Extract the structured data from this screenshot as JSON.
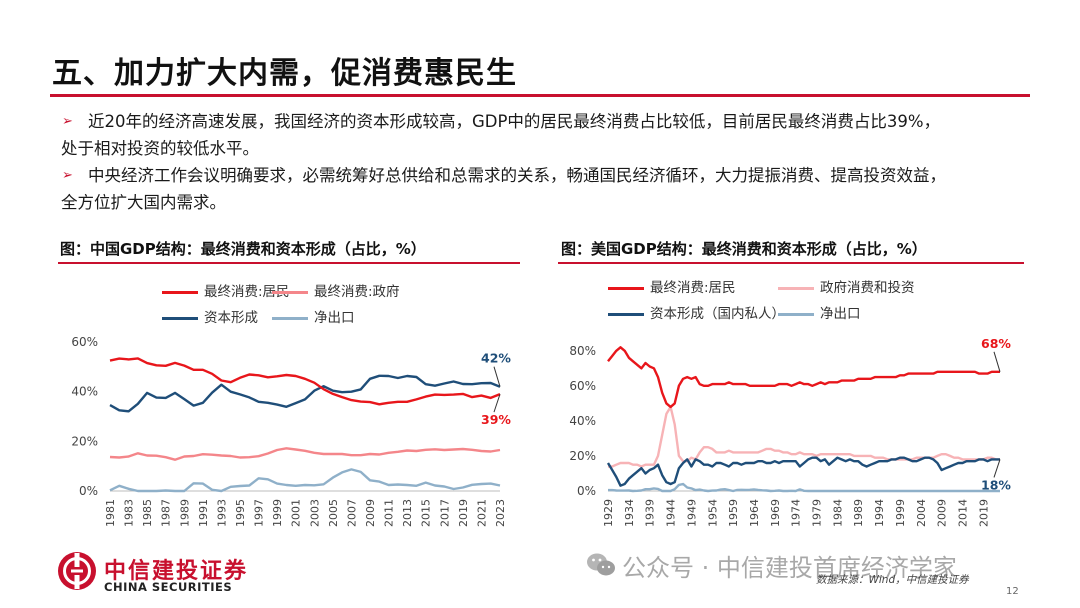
{
  "page": {
    "title": "五、加力扩大内需，促消费惠民生",
    "bullets": [
      {
        "line1": "近20年的经济高速发展，我国经济的资本形成较高，GDP中的居民最终消费占比较低，目前居民最终消费占比39%，",
        "line2": "处于相对投资的较低水平。"
      },
      {
        "line1": "中央经济工作会议明确要求，必需统筹好总供给和总需求的关系，畅通国民经济循环，大力提振消费、提高投资效益，",
        "line2": "全方位扩大国内需求。"
      }
    ],
    "bullet_mark": "➢",
    "logo_cn": "中信建投证券",
    "logo_en": "CHINA SECURITIES",
    "watermark": "公众号 · 中信建投首席经济学家",
    "source": "数据来源：Wind，中信建投证券",
    "page_number": "12",
    "colors": {
      "brand_red": "#c8102e",
      "resident": "#e8161b",
      "government": "#f4868a",
      "government_us": "#f7b3b6",
      "capital": "#1f4e79",
      "net_export": "#8fb0c9"
    }
  },
  "chart_data": [
    {
      "type": "line",
      "title": "图：中国GDP结构：最终消费和资本形成（占比，%）",
      "x": [
        1981,
        1982,
        1983,
        1984,
        1985,
        1986,
        1987,
        1988,
        1989,
        1990,
        1991,
        1992,
        1993,
        1994,
        1995,
        1996,
        1997,
        1998,
        1999,
        2000,
        2001,
        2002,
        2003,
        2004,
        2005,
        2006,
        2007,
        2008,
        2009,
        2010,
        2011,
        2012,
        2013,
        2014,
        2015,
        2016,
        2017,
        2018,
        2019,
        2020,
        2021,
        2022,
        2023
      ],
      "x_tick_labels": [
        "1981",
        "1983",
        "1985",
        "1987",
        "1989",
        "1991",
        "1993",
        "1995",
        "1997",
        "1999",
        "2001",
        "2003",
        "2005",
        "2007",
        "2009",
        "2011",
        "2013",
        "2015",
        "2017",
        "2019",
        "2021",
        "2023"
      ],
      "y_tick_labels": [
        "0%",
        "20%",
        "40%",
        "60%"
      ],
      "ylim": [
        0,
        60
      ],
      "series": [
        {
          "name": "最终消费:居民",
          "color": "#e8161b",
          "values": [
            52.5,
            53.3,
            53,
            53.4,
            51.5,
            50.6,
            50.4,
            51.6,
            50.5,
            48.8,
            48.8,
            47.2,
            44.5,
            43.8,
            45.6,
            46.9,
            46.6,
            45.8,
            46.2,
            46.7,
            46.3,
            45.2,
            43.6,
            41,
            39.1,
            37.8,
            36.6,
            36,
            35.8,
            34.9,
            35.5,
            35.9,
            35.9,
            36.9,
            38,
            38.8,
            38.7,
            38.8,
            39.1,
            37.8,
            38.4,
            37.5,
            39
          ]
        },
        {
          "name": "最终消费:政府",
          "color": "#f4868a",
          "values": [
            13.7,
            13.5,
            13.9,
            15.2,
            14.3,
            14.2,
            13.6,
            12.6,
            13.9,
            14.1,
            14.8,
            14.6,
            14.3,
            14.1,
            13.5,
            13.6,
            14,
            15.1,
            16.5,
            17.2,
            16.7,
            16.2,
            15.4,
            14.9,
            14.9,
            14.9,
            14.4,
            14.4,
            14.9,
            14.7,
            15.4,
            15.8,
            16.3,
            16.1,
            16.6,
            16.8,
            16.5,
            16.7,
            16.9,
            16.6,
            16.1,
            15.9,
            16.5
          ]
        },
        {
          "name": "资本形成",
          "color": "#1f4e79",
          "values": [
            34.6,
            32.5,
            32.1,
            35.1,
            39.5,
            37.6,
            37.5,
            39.5,
            37,
            34.4,
            35.5,
            39.6,
            42.8,
            40,
            38.9,
            37.7,
            35.9,
            35.5,
            34.8,
            33.9,
            35.4,
            36.9,
            40.4,
            42.2,
            40.4,
            39.8,
            40,
            40.9,
            45.2,
            46.4,
            46.3,
            45.5,
            46.3,
            45.9,
            43,
            42.4,
            43.3,
            44.1,
            43.1,
            43,
            43.4,
            43.5,
            42
          ]
        },
        {
          "name": "净出口",
          "color": "#8fb0c9",
          "values": [
            0.3,
            2.1,
            0.9,
            -0.6,
            -4.1,
            -1.4,
            0.2,
            -1.3,
            -1.2,
            3.1,
            3,
            0.5,
            -1.7,
            1.7,
            2,
            2.2,
            5.1,
            4.7,
            3,
            2.4,
            2.1,
            2.4,
            2.3,
            2.7,
            5.4,
            7.5,
            8.7,
            7.7,
            4.3,
            3.8,
            2.4,
            2.6,
            2.4,
            2.1,
            3.4,
            2.2,
            1.8,
            0.8,
            1.4,
            2.5,
            2.8,
            3,
            2.2
          ]
        }
      ],
      "end_labels": [
        {
          "series": 2,
          "text": "42%"
        },
        {
          "series": 0,
          "text": "39%"
        }
      ]
    },
    {
      "type": "line",
      "title": "图：美国GDP结构：最终消费和资本形成（占比，%）",
      "x": [
        1929,
        1930,
        1931,
        1932,
        1933,
        1934,
        1935,
        1936,
        1937,
        1938,
        1939,
        1940,
        1941,
        1942,
        1943,
        1944,
        1945,
        1946,
        1947,
        1948,
        1949,
        1950,
        1951,
        1952,
        1953,
        1954,
        1955,
        1956,
        1957,
        1958,
        1959,
        1960,
        1961,
        1962,
        1963,
        1964,
        1965,
        1966,
        1967,
        1968,
        1969,
        1970,
        1971,
        1972,
        1973,
        1974,
        1975,
        1976,
        1977,
        1978,
        1979,
        1980,
        1981,
        1982,
        1983,
        1984,
        1985,
        1986,
        1987,
        1988,
        1989,
        1990,
        1991,
        1992,
        1993,
        1994,
        1995,
        1996,
        1997,
        1998,
        1999,
        2000,
        2001,
        2002,
        2003,
        2004,
        2005,
        2006,
        2007,
        2008,
        2009,
        2010,
        2011,
        2012,
        2013,
        2014,
        2015,
        2016,
        2017,
        2018,
        2019,
        2020,
        2021,
        2022,
        2023
      ],
      "x_tick_labels": [
        "1929",
        "1934",
        "1939",
        "1944",
        "1949",
        "1954",
        "1959",
        "1964",
        "1969",
        "1974",
        "1979",
        "1984",
        "1989",
        "1994",
        "1999",
        "2004",
        "2009",
        "2014",
        "2019"
      ],
      "y_tick_labels": [
        "0%",
        "20%",
        "40%",
        "60%",
        "80%"
      ],
      "ylim": [
        0,
        85
      ],
      "series": [
        {
          "name": "最终消费:居民",
          "color": "#e8161b",
          "values": [
            74,
            77,
            80,
            82,
            80,
            76,
            74,
            72,
            70,
            73,
            71,
            70,
            65,
            56,
            50,
            48,
            50,
            60,
            64,
            65,
            64,
            65,
            61,
            60,
            60,
            61,
            61,
            61,
            61,
            62,
            61,
            61,
            61,
            61,
            60,
            60,
            60,
            60,
            60,
            60,
            60,
            61,
            61,
            61,
            60,
            61,
            62,
            61,
            61,
            60,
            61,
            62,
            61,
            62,
            62,
            62,
            63,
            63,
            63,
            63,
            64,
            64,
            64,
            64,
            65,
            65,
            65,
            65,
            65,
            65,
            66,
            66,
            67,
            67,
            67,
            67,
            67,
            67,
            67,
            68,
            68,
            68,
            68,
            68,
            68,
            68,
            68,
            68,
            68,
            67,
            67,
            67,
            68,
            68,
            68
          ]
        },
        {
          "name": "政府消费和投资",
          "color": "#f7b3b6",
          "values": [
            14,
            14,
            15,
            16,
            16,
            16,
            15,
            15,
            14,
            15,
            15,
            15,
            20,
            32,
            44,
            48,
            38,
            20,
            17,
            17,
            19,
            18,
            22,
            25,
            25,
            24,
            22,
            22,
            22,
            23,
            22,
            22,
            22,
            22,
            22,
            22,
            22,
            23,
            24,
            24,
            23,
            23,
            22,
            22,
            21,
            21,
            22,
            21,
            21,
            21,
            20,
            21,
            21,
            21,
            21,
            21,
            21,
            21,
            21,
            20,
            20,
            20,
            20,
            20,
            19,
            19,
            19,
            18,
            18,
            18,
            18,
            18,
            18,
            18,
            19,
            19,
            19,
            19,
            19,
            20,
            21,
            21,
            20,
            19,
            19,
            18,
            18,
            18,
            18,
            18,
            18,
            19,
            19,
            18,
            18
          ]
        },
        {
          "name": "资本形成（国内私人）",
          "color": "#1f4e79",
          "values": [
            16,
            12,
            8,
            3,
            4,
            7,
            9,
            11,
            13,
            10,
            12,
            13,
            15,
            9,
            5,
            4,
            5,
            13,
            16,
            18,
            14,
            18,
            17,
            15,
            15,
            14,
            16,
            16,
            15,
            14,
            16,
            16,
            15,
            16,
            16,
            16,
            17,
            17,
            16,
            16,
            17,
            16,
            17,
            17,
            17,
            17,
            14,
            16,
            18,
            19,
            19,
            17,
            18,
            15,
            17,
            19,
            18,
            17,
            18,
            17,
            17,
            15,
            14,
            15,
            16,
            17,
            17,
            17,
            18,
            18,
            19,
            19,
            18,
            17,
            17,
            18,
            19,
            19,
            18,
            16,
            12,
            13,
            14,
            15,
            16,
            16,
            17,
            17,
            17,
            18,
            18,
            17,
            18,
            18,
            18
          ]
        },
        {
          "name": "净出口",
          "color": "#8fb0c9",
          "values": [
            0.5,
            0.5,
            0.3,
            0.2,
            0.2,
            0.3,
            0,
            0.1,
            0.3,
            1,
            1,
            1.5,
            1.2,
            0,
            -1.5,
            -1,
            1,
            3.5,
            4,
            2,
            1.5,
            0.5,
            0.8,
            0.3,
            0,
            0.2,
            0.3,
            0.8,
            1,
            0.5,
            0,
            0.6,
            0.7,
            0.6,
            0.7,
            0.9,
            0.6,
            0.4,
            0.3,
            0,
            0.1,
            0.3,
            0,
            -0.3,
            0.1,
            -0.1,
            0.9,
            0.1,
            -0.8,
            -0.8,
            -0.5,
            -0.3,
            -0.2,
            -0.6,
            -1.5,
            -2.5,
            -2.7,
            -3,
            -3,
            -2,
            -1.5,
            -1.3,
            -0.5,
            -0.5,
            -1,
            -1.3,
            -1.2,
            -1.2,
            -1.2,
            -1.9,
            -2.8,
            -3.9,
            -3.6,
            -4,
            -4.5,
            -5.2,
            -5.6,
            -5.6,
            -5,
            -4.9,
            -2.7,
            -3.4,
            -3.6,
            -3.4,
            -2.9,
            -2.9,
            -2.8,
            -2.7,
            -2.8,
            -2.9,
            -2.7,
            -3.1,
            -3.7,
            -3.7,
            -3
          ]
        }
      ],
      "end_labels": [
        {
          "series": 0,
          "text": "68%"
        },
        {
          "series": 2,
          "text": "18%"
        }
      ]
    }
  ]
}
